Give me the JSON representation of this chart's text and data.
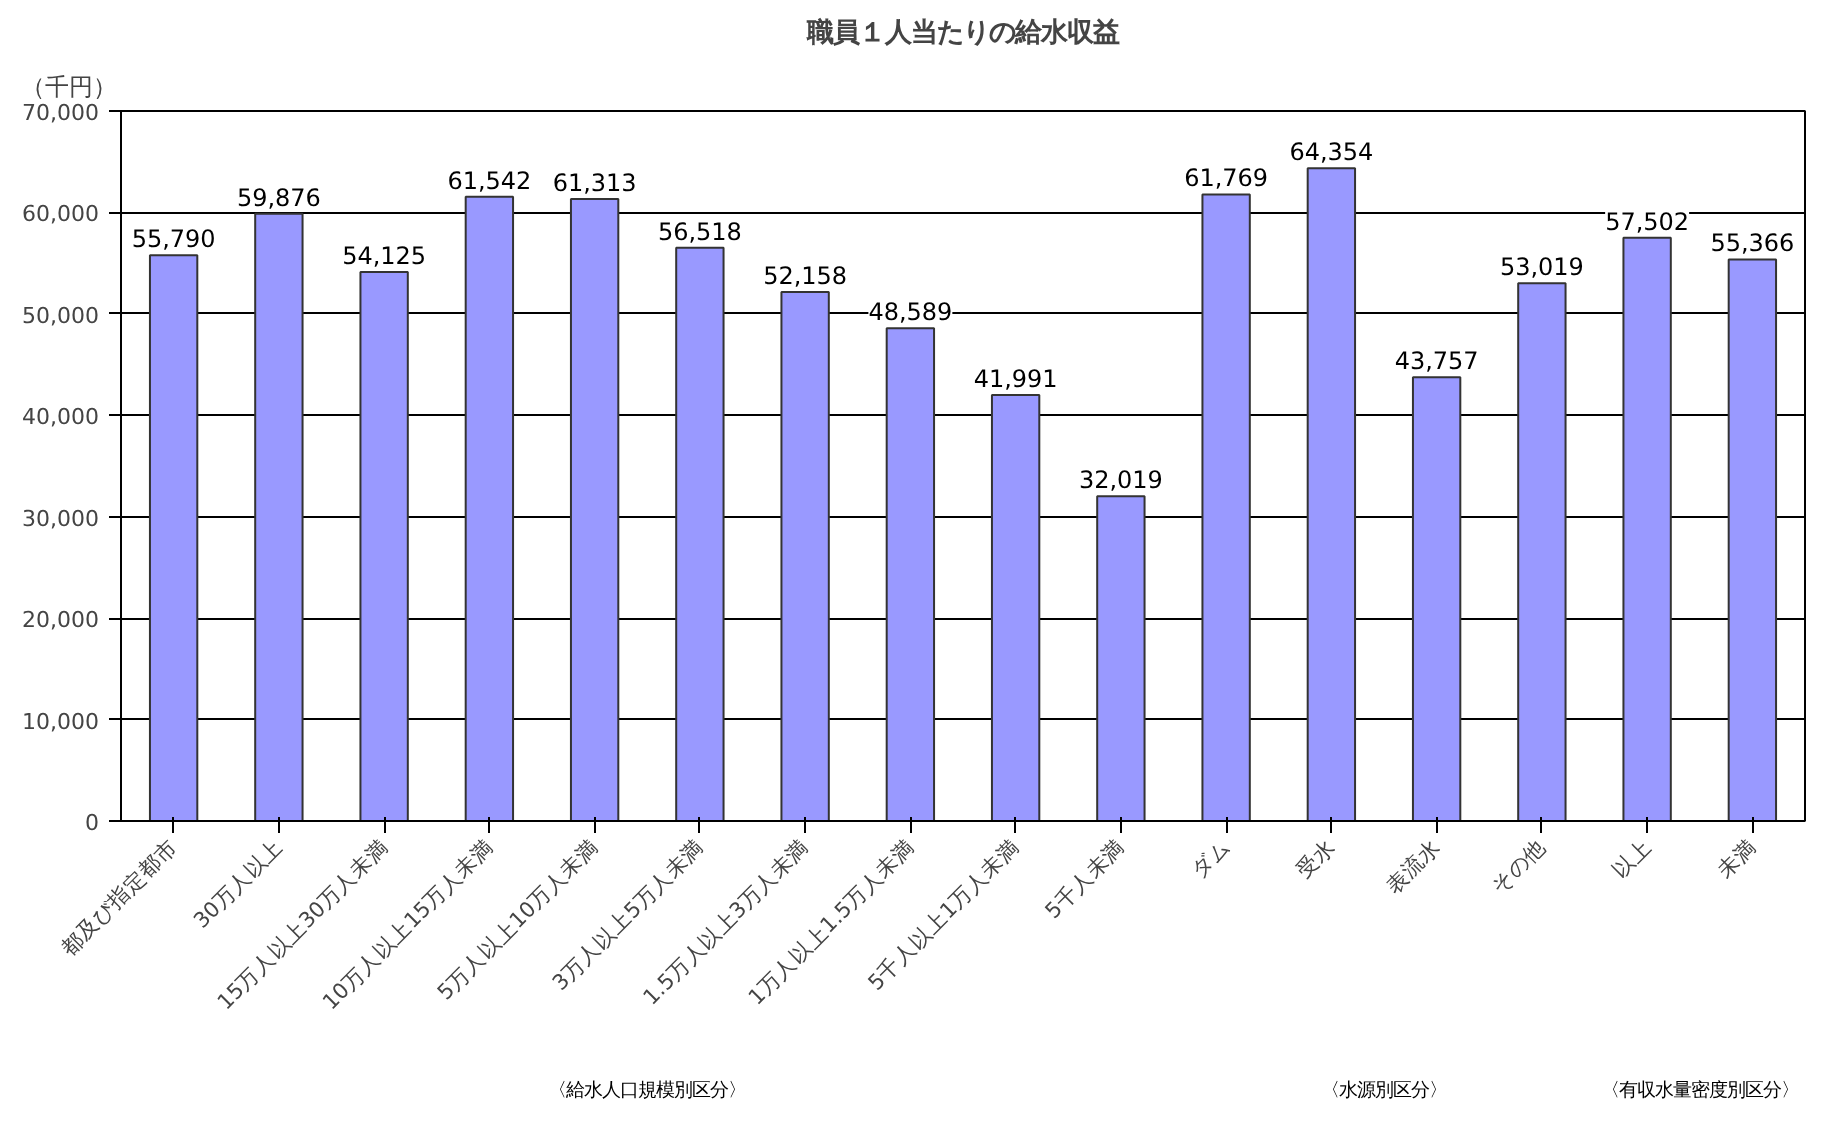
{
  "chart_data": {
    "type": "bar",
    "title": "職員１人当たりの給水収益",
    "ylabel": "（千円）",
    "categories": [
      "都及び指定都市",
      "30万人以上",
      "15万人以上30万人未満",
      "10万人以上15万人未満",
      "5万人以上10万人未満",
      "3万人以上5万人未満",
      "1.5万人以上3万人未満",
      "1万人以上1.5万人未満",
      "5千人以上1万人未満",
      "5千人未満",
      "ダム",
      "受水",
      "表流水",
      "その他",
      "以上",
      "未満"
    ],
    "values": [
      55790,
      59876,
      54125,
      61542,
      61313,
      56518,
      52158,
      48589,
      41991,
      32019,
      61769,
      64354,
      43757,
      53019,
      57502,
      55366
    ],
    "color": "#9999ff",
    "ylim": [
      0,
      70000
    ],
    "yticks": [
      {
        "value": 0,
        "label": "0"
      },
      {
        "value": 10000,
        "label": "10,000"
      },
      {
        "value": 20000,
        "label": "20,000"
      },
      {
        "value": 30000,
        "label": "30,000"
      },
      {
        "value": 40000,
        "label": "40,000"
      },
      {
        "value": 50000,
        "label": "50,000"
      },
      {
        "value": 60000,
        "label": "60,000"
      },
      {
        "value": 70000,
        "label": "70,000"
      }
    ],
    "grid": "y",
    "value_labels": [
      "55,790",
      "59,876",
      "54,125",
      "61,542",
      "61,313",
      "56,518",
      "52,158",
      "48,589",
      "41,991",
      "32,019",
      "61,769",
      "64,354",
      "43,757",
      "53,019",
      "57,502",
      "55,366"
    ],
    "annotations": [
      "〈給水人口規模別区分〉",
      "〈水源別区分〉",
      "〈有収水量密度別区分〉"
    ]
  }
}
